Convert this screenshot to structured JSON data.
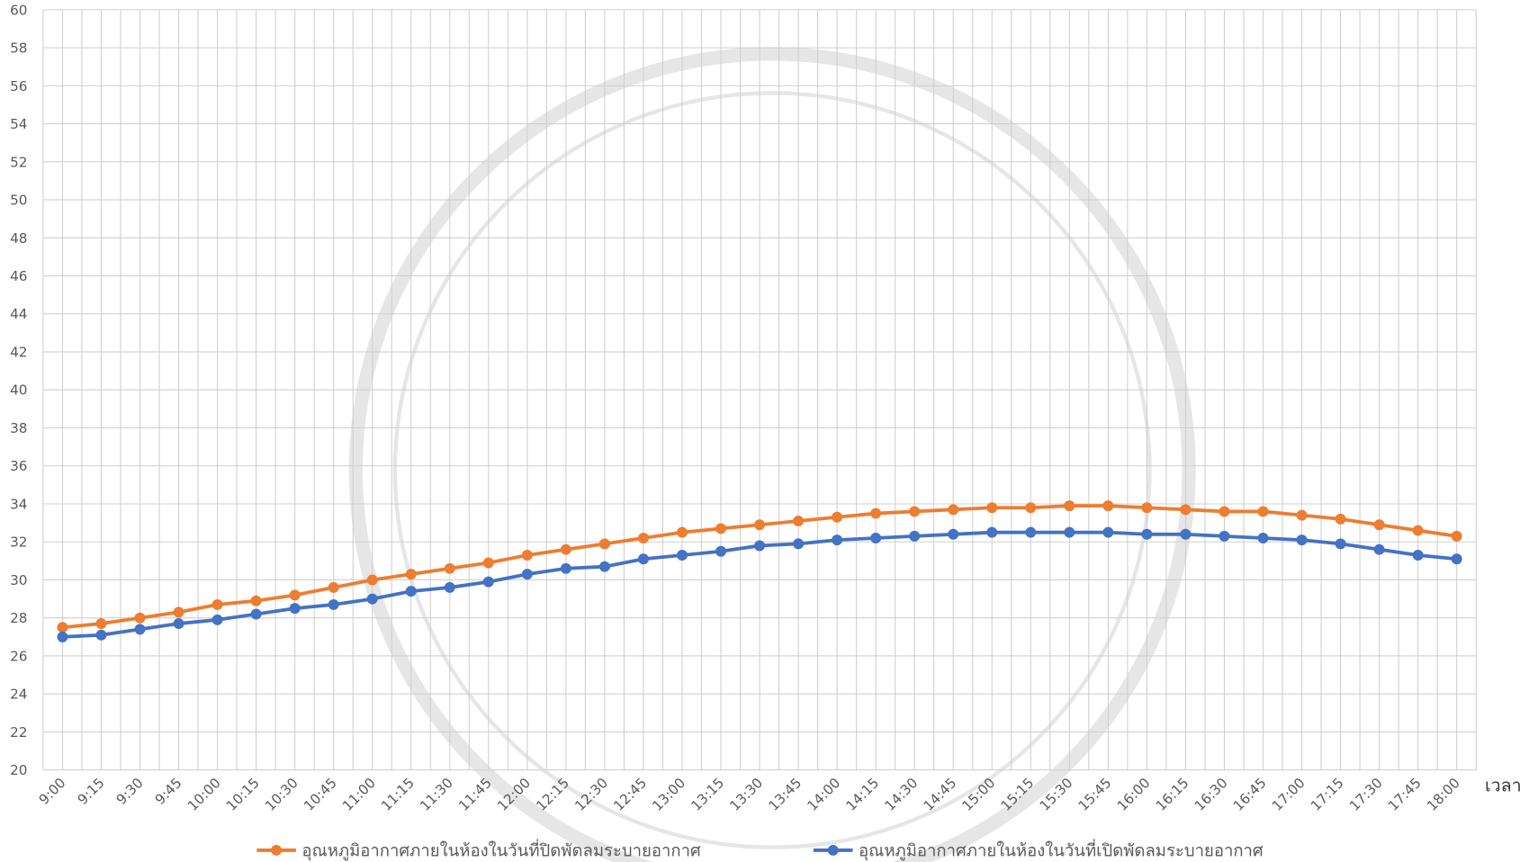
{
  "chart_data": {
    "type": "line",
    "x_label": "เวลา",
    "categories": [
      "9:00",
      "9:15",
      "9:30",
      "9:45",
      "10:00",
      "10:15",
      "10:30",
      "10:45",
      "11:00",
      "11:15",
      "11:30",
      "11:45",
      "12:00",
      "12:15",
      "12:30",
      "12:45",
      "13:00",
      "13:15",
      "13:30",
      "13:45",
      "14:00",
      "14:15",
      "14:30",
      "14:45",
      "15:00",
      "15:15",
      "15:30",
      "15:45",
      "16:00",
      "16:15",
      "16:30",
      "16:45",
      "17:00",
      "17:15",
      "17:30",
      "17:45",
      "18:00"
    ],
    "series": [
      {
        "name": "อุณหภูมิอากาศภายในห้องในวันที่ปิดพัดลมระบายอากาศ",
        "color": "#ed7d31",
        "values": [
          27.5,
          27.7,
          28.0,
          28.3,
          28.7,
          28.9,
          29.2,
          29.6,
          30.0,
          30.3,
          30.6,
          30.9,
          31.3,
          31.6,
          31.9,
          32.2,
          32.5,
          32.7,
          32.9,
          33.1,
          33.3,
          33.5,
          33.6,
          33.7,
          33.8,
          33.8,
          33.9,
          33.9,
          33.8,
          33.7,
          33.6,
          33.6,
          33.4,
          33.2,
          32.9,
          32.6,
          32.3
        ]
      },
      {
        "name": "อุณหภูมิอากาศภายในห้องในวันที่เปิดพัดลมระบายอากาศ",
        "color": "#4472c4",
        "values": [
          27.0,
          27.1,
          27.4,
          27.7,
          27.9,
          28.2,
          28.5,
          28.7,
          29.0,
          29.4,
          29.6,
          29.9,
          30.3,
          30.6,
          30.7,
          31.1,
          31.3,
          31.5,
          31.8,
          31.9,
          32.1,
          32.2,
          32.3,
          32.4,
          32.5,
          32.5,
          32.5,
          32.5,
          32.4,
          32.4,
          32.3,
          32.2,
          32.1,
          31.9,
          31.6,
          31.3,
          31.1
        ]
      }
    ],
    "ylim": [
      20,
      60
    ],
    "yticks": [
      20,
      22,
      24,
      26,
      28,
      30,
      32,
      34,
      36,
      38,
      40,
      42,
      44,
      46,
      48,
      50,
      52,
      54,
      56,
      58,
      60
    ],
    "grid": true
  }
}
